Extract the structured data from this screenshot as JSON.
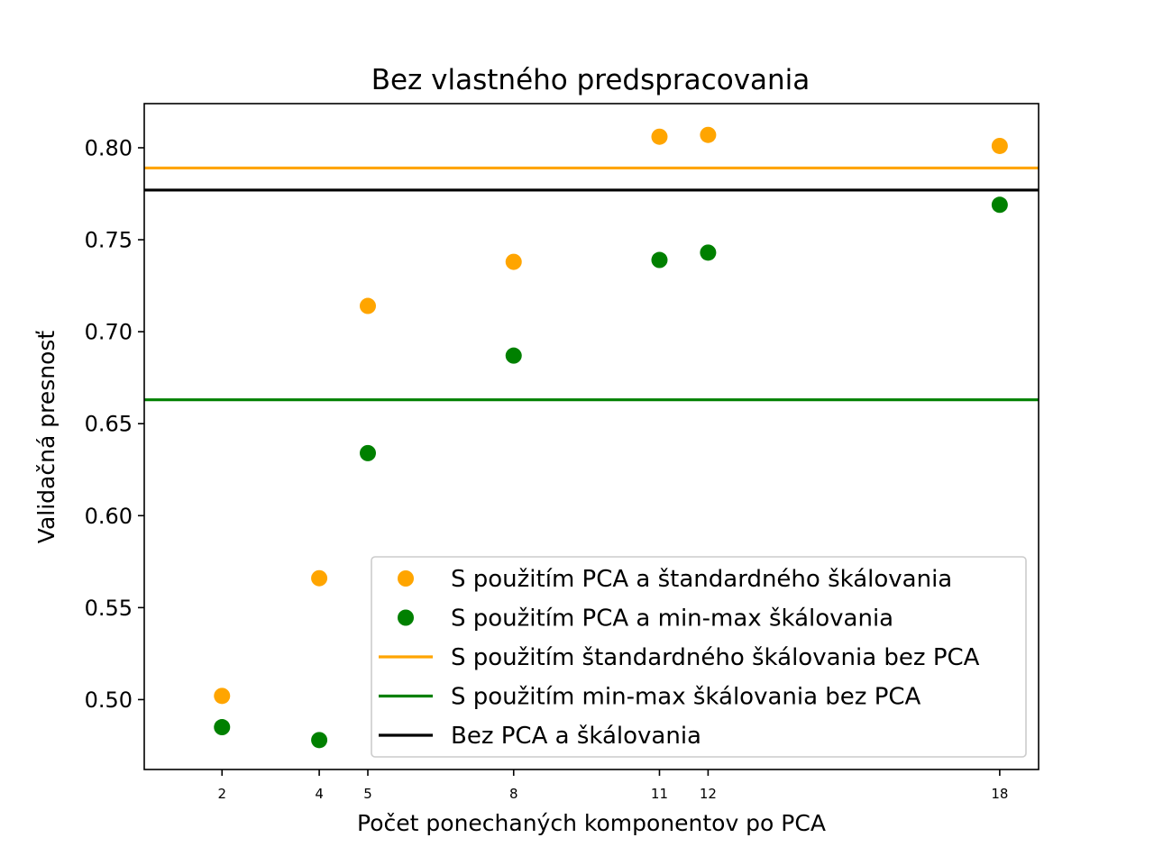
{
  "chart_data": {
    "type": "scatter",
    "title": "Bez vlastného predspracovania",
    "xlabel": "Počet ponechaných komponentov po PCA",
    "ylabel": "Validačná presnosť",
    "x_ticks": [
      2,
      4,
      5,
      8,
      11,
      12,
      18
    ],
    "y_ticks": [
      "0.50",
      "0.55",
      "0.60",
      "0.65",
      "0.70",
      "0.75",
      "0.80"
    ],
    "xlim": [
      0.4,
      18.8
    ],
    "ylim": [
      0.462,
      0.824
    ],
    "grid": false,
    "legend_position": "lower-right",
    "series": [
      {
        "name": "S použitím PCA a štandardného škálovania",
        "kind": "scatter",
        "color": "#FFA500",
        "x": [
          2,
          4,
          5,
          8,
          11,
          12,
          18
        ],
        "y": [
          0.502,
          0.566,
          0.714,
          0.738,
          0.806,
          0.807,
          0.801
        ]
      },
      {
        "name": "S použitím PCA a min-max škálovania",
        "kind": "scatter",
        "color": "#008000",
        "x": [
          2,
          4,
          5,
          8,
          11,
          12,
          18
        ],
        "y": [
          0.485,
          0.478,
          0.634,
          0.687,
          0.739,
          0.743,
          0.769
        ]
      },
      {
        "name": "S použitím štandardného škálovania bez PCA",
        "kind": "hline",
        "color": "#FFA500",
        "y": 0.789
      },
      {
        "name": "S použitím min-max škálovania bez PCA",
        "kind": "hline",
        "color": "#008000",
        "y": 0.663
      },
      {
        "name": "Bez PCA a škálovania",
        "kind": "hline",
        "color": "#000000",
        "y": 0.777
      }
    ]
  }
}
